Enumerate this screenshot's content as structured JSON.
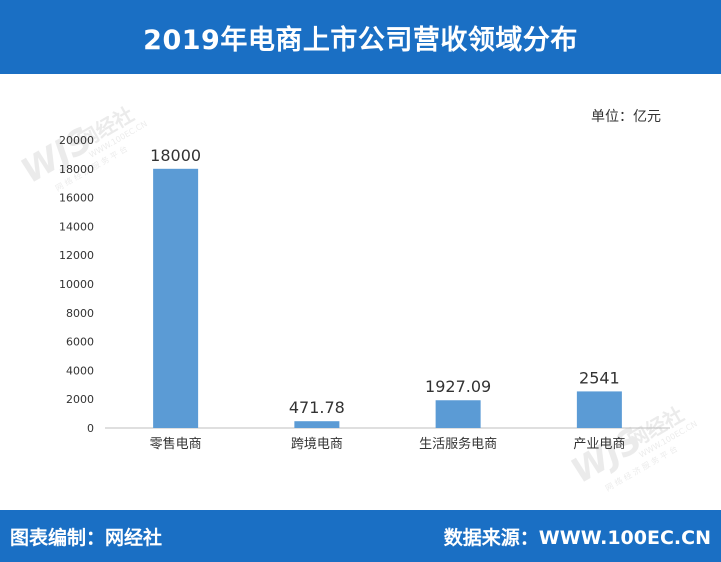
{
  "header": {
    "title": "2019年电商上市公司营收领域分布"
  },
  "unit_label": "单位：亿元",
  "footer": {
    "left": "图表编制：网经社",
    "right": "数据来源：WWW.100EC.CN"
  },
  "watermark": {
    "brand": "网经社",
    "url": "WWW.100EC.CN",
    "slogan": "网 络 经 济 服 务 平 台"
  },
  "chart_data": {
    "type": "bar",
    "categories": [
      "零售电商",
      "跨境电商",
      "生活服务电商",
      "产业电商"
    ],
    "values": [
      18000,
      471.78,
      1927.09,
      2541
    ],
    "data_labels": [
      "18000",
      "471.78",
      "1927.09",
      "2541"
    ],
    "ylim": [
      0,
      20000
    ],
    "yticks": [
      "0",
      "2000",
      "4000",
      "6000",
      "8000",
      "10000",
      "12000",
      "14000",
      "16000",
      "18000",
      "20000"
    ],
    "bar_color": "#5b9bd5",
    "grid": false,
    "legend": false
  }
}
